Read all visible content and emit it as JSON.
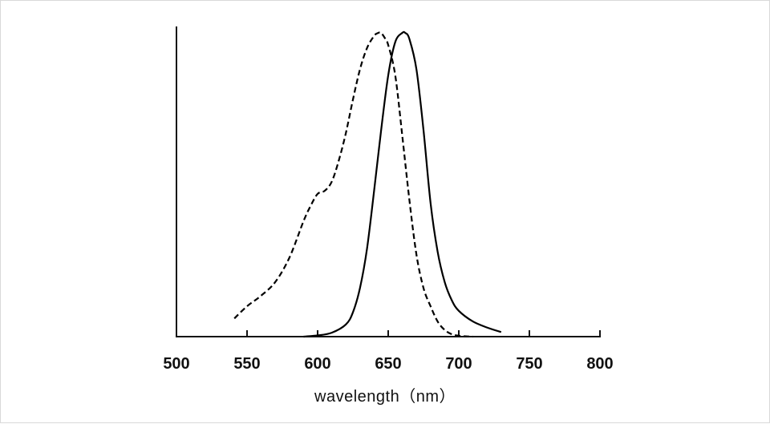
{
  "chart_data": {
    "type": "line",
    "xlabel": "wavelength（nm）",
    "ylabel": "",
    "title": "",
    "xlim": [
      500,
      800
    ],
    "ylim": [
      0,
      1
    ],
    "xticks": [
      "500",
      "550",
      "600",
      "650",
      "700",
      "750",
      "800"
    ],
    "grid": false,
    "legend": "none",
    "series": [
      {
        "style": "dashed",
        "color": "#000000",
        "x": [
          541,
          550,
          560,
          570,
          580,
          590,
          595,
          600,
          605,
          610,
          615,
          620,
          625,
          630,
          635,
          640,
          643,
          645,
          648,
          650,
          655,
          660,
          665,
          670,
          675,
          680,
          685,
          690,
          695,
          700,
          705,
          710
        ],
        "y": [
          0.06,
          0.1,
          0.135,
          0.18,
          0.26,
          0.38,
          0.43,
          0.47,
          0.48,
          0.51,
          0.58,
          0.67,
          0.78,
          0.88,
          0.95,
          0.99,
          1.0,
          1.0,
          0.98,
          0.96,
          0.86,
          0.66,
          0.45,
          0.27,
          0.16,
          0.1,
          0.05,
          0.022,
          0.008,
          0.003,
          0.001,
          0.0
        ]
      },
      {
        "style": "solid",
        "color": "#000000",
        "x": [
          590,
          600,
          610,
          620,
          625,
          630,
          635,
          640,
          645,
          650,
          655,
          660,
          662,
          665,
          670,
          675,
          680,
          685,
          690,
          695,
          700,
          710,
          720,
          730
        ],
        "y": [
          0.0,
          0.004,
          0.013,
          0.04,
          0.08,
          0.16,
          0.29,
          0.48,
          0.68,
          0.86,
          0.97,
          1.0,
          1.0,
          0.98,
          0.88,
          0.68,
          0.44,
          0.28,
          0.18,
          0.12,
          0.085,
          0.05,
          0.03,
          0.015
        ]
      }
    ]
  }
}
